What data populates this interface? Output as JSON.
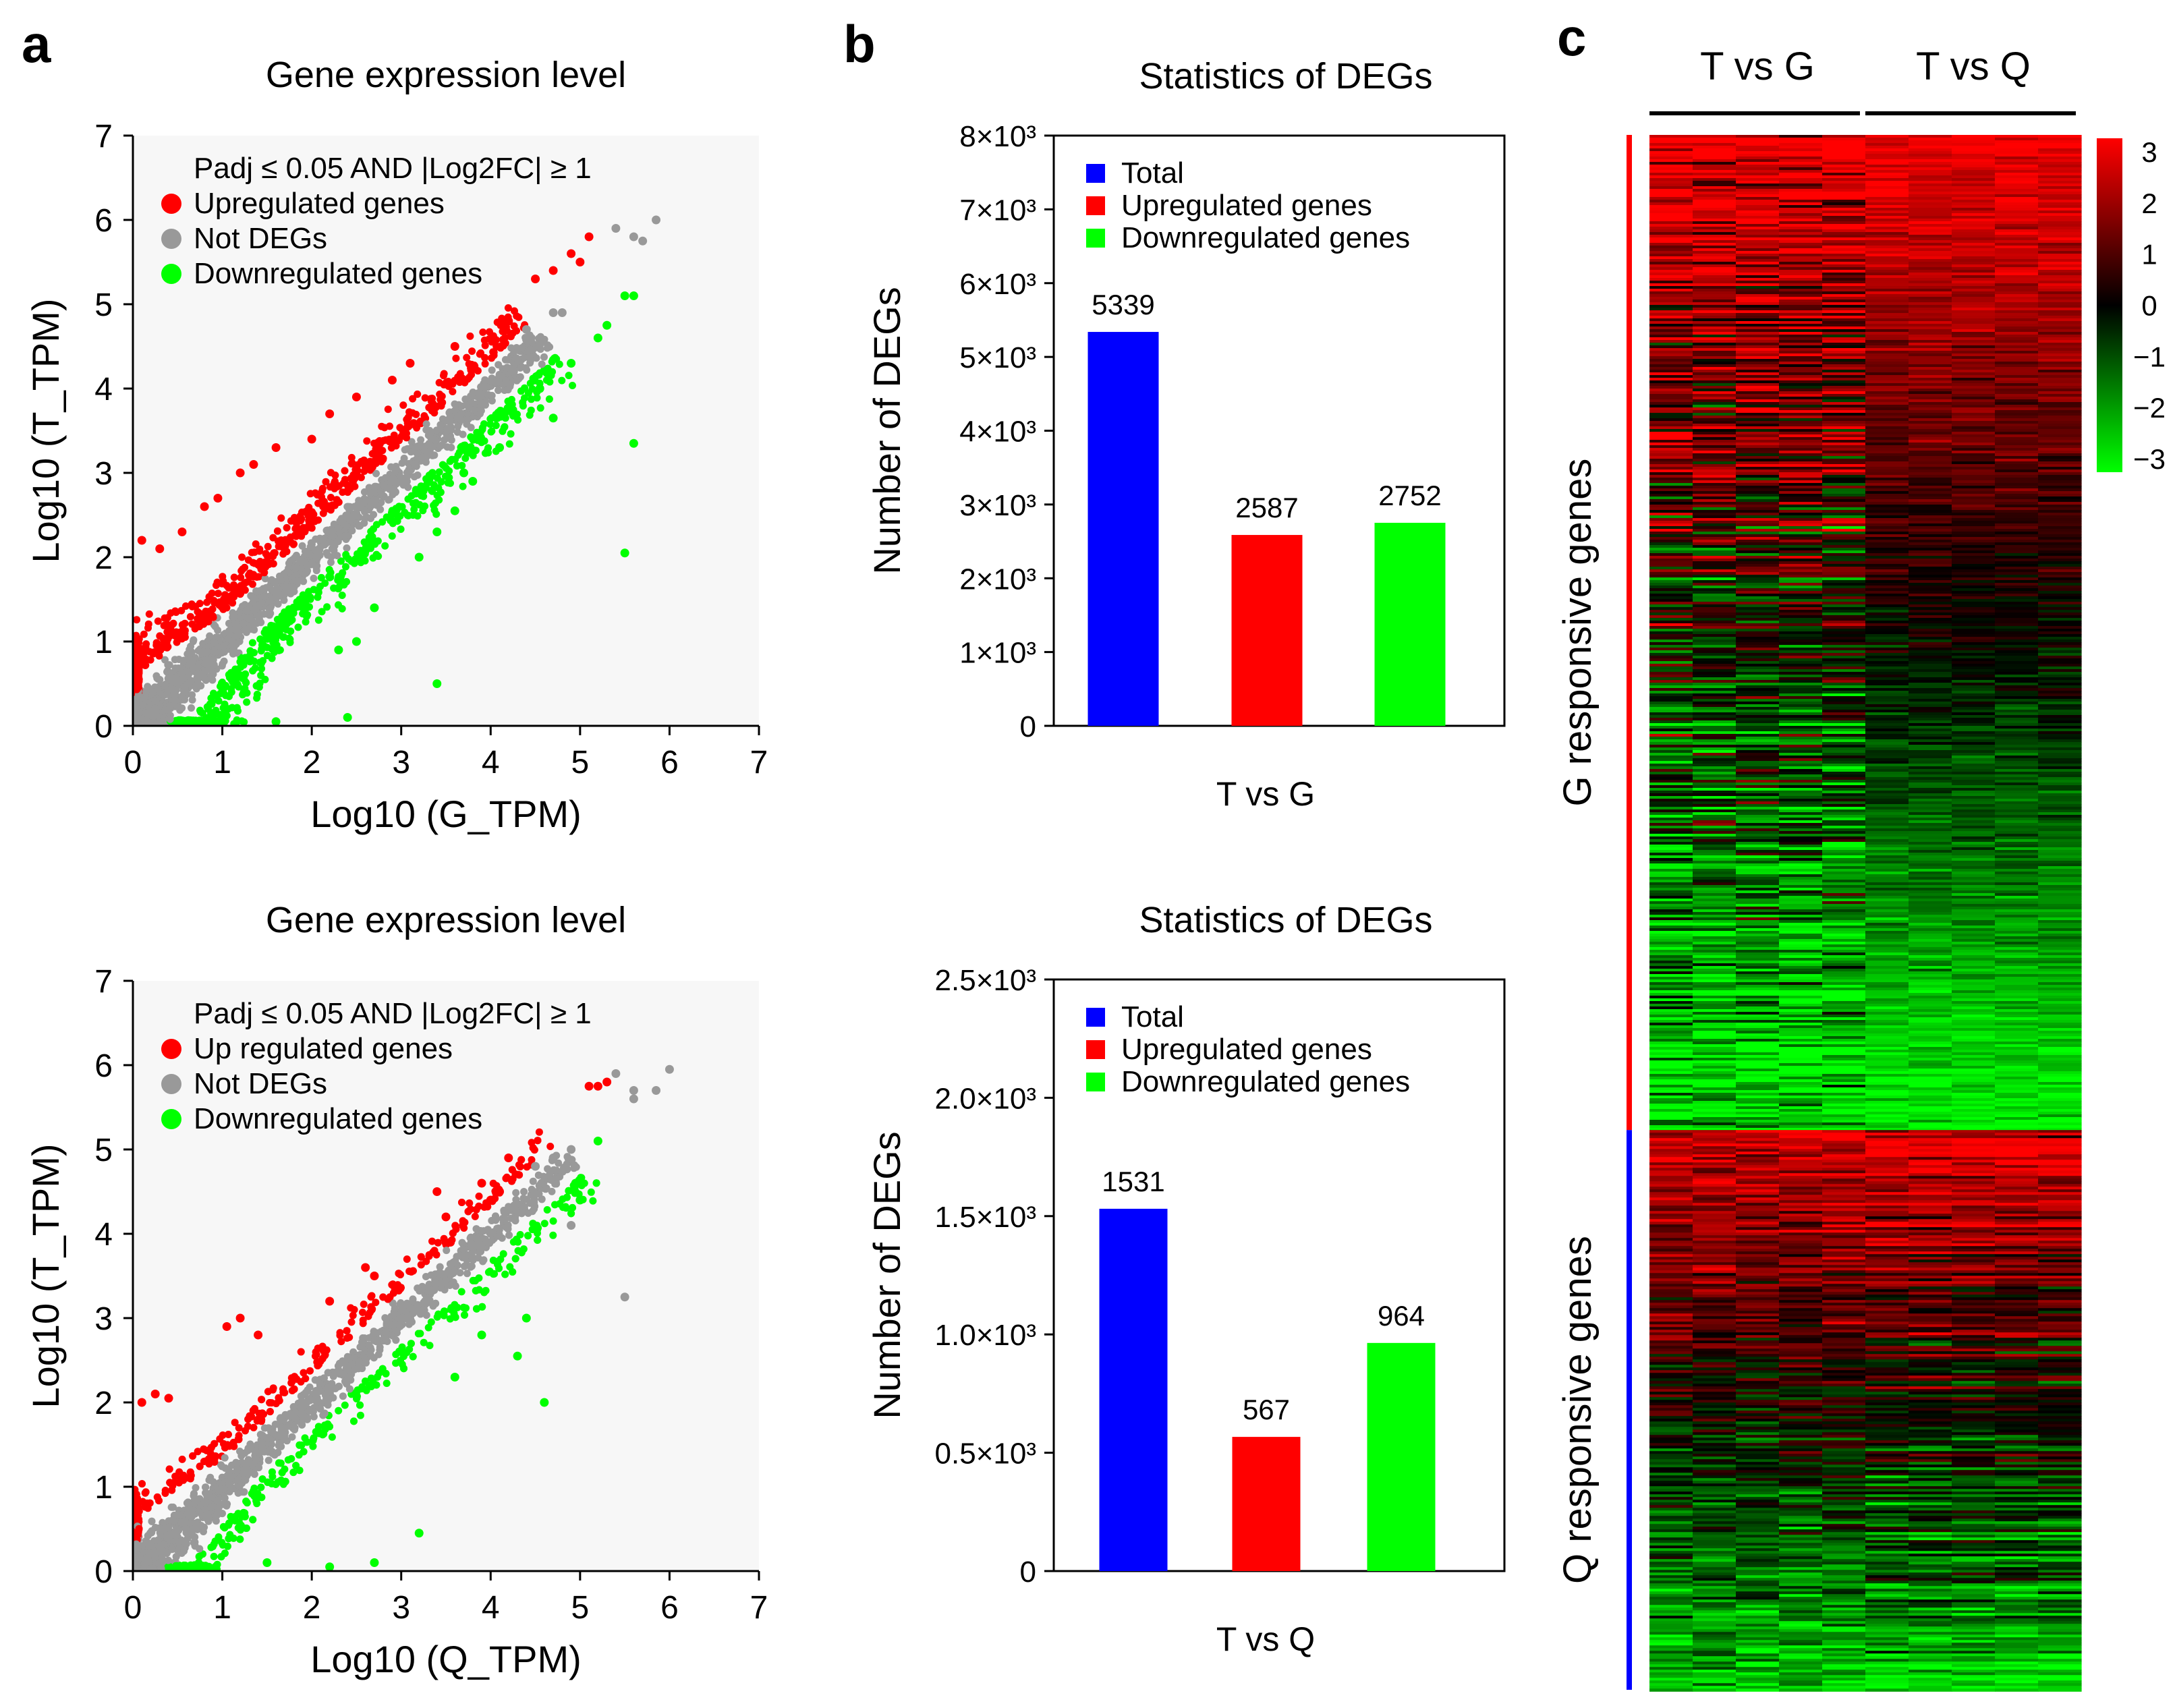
{
  "panel_labels": [
    "a",
    "b",
    "c"
  ],
  "chart_data": [
    {
      "id": "scatter_G",
      "type": "scatter",
      "title": "Gene expression level",
      "xlabel": "Log10 (G_TPM)",
      "ylabel": "Log10 (T_TPM)",
      "xlim": [
        0,
        7
      ],
      "ylim": [
        0,
        7
      ],
      "xticks": [
        "0",
        "1",
        "2",
        "3",
        "4",
        "5",
        "6",
        "7"
      ],
      "yticks": [
        "0",
        "1",
        "2",
        "3",
        "4",
        "5",
        "6",
        "7"
      ],
      "legend_title": "Padj ≤ 0.05 AND |Log2FC| ≥ 1",
      "legend_position": "top-left",
      "series": [
        {
          "name": "Upregulated genes",
          "color": "#ff0000",
          "relation": "above diagonal"
        },
        {
          "name": "Not DEGs",
          "color": "#999999",
          "relation": "near diagonal"
        },
        {
          "name": "Downregulated genes",
          "color": "#00ff00",
          "relation": "below diagonal"
        }
      ],
      "outliers": {
        "up": [
          [
            0.1,
            2.2
          ],
          [
            0.3,
            2.1
          ],
          [
            0.55,
            2.3
          ],
          [
            0.8,
            2.6
          ],
          [
            0.95,
            2.7
          ],
          [
            1.2,
            3.0
          ],
          [
            1.35,
            3.1
          ],
          [
            1.6,
            3.3
          ],
          [
            2.0,
            3.4
          ],
          [
            2.2,
            3.7
          ],
          [
            2.5,
            3.9
          ],
          [
            2.9,
            4.1
          ],
          [
            3.1,
            4.3
          ],
          [
            3.6,
            4.5
          ],
          [
            4.2,
            4.8
          ],
          [
            4.5,
            5.3
          ],
          [
            4.7,
            5.4
          ],
          [
            4.9,
            5.6
          ],
          [
            5.1,
            5.8
          ],
          [
            5.0,
            5.5
          ]
        ],
        "grey": [
          [
            5.4,
            5.9
          ],
          [
            5.6,
            5.8
          ],
          [
            5.7,
            5.75
          ],
          [
            5.85,
            6.0
          ],
          [
            4.8,
            4.9
          ],
          [
            4.4,
            4.7
          ],
          [
            4.7,
            4.9
          ]
        ],
        "down": [
          [
            5.5,
            2.05
          ],
          [
            5.6,
            3.35
          ],
          [
            5.5,
            5.1
          ],
          [
            5.6,
            5.1
          ],
          [
            5.3,
            4.75
          ],
          [
            5.2,
            4.6
          ],
          [
            4.9,
            4.3
          ],
          [
            4.55,
            4.0
          ],
          [
            4.7,
            3.65
          ],
          [
            4.1,
            3.3
          ],
          [
            3.8,
            2.9
          ],
          [
            3.6,
            2.55
          ],
          [
            3.4,
            2.3
          ],
          [
            3.2,
            2.0
          ],
          [
            3.7,
            3.0
          ],
          [
            2.7,
            1.4
          ],
          [
            2.5,
            1.0
          ],
          [
            2.3,
            0.9
          ],
          [
            3.4,
            0.5
          ],
          [
            2.4,
            0.1
          ],
          [
            1.6,
            0.05
          ]
        ]
      }
    },
    {
      "id": "scatter_Q",
      "type": "scatter",
      "title": "Gene expression level",
      "xlabel": "Log10 (Q_TPM)",
      "ylabel": "Log10 (T_TPM)",
      "xlim": [
        0,
        7
      ],
      "ylim": [
        0,
        7
      ],
      "xticks": [
        "0",
        "1",
        "2",
        "3",
        "4",
        "5",
        "6",
        "7"
      ],
      "yticks": [
        "0",
        "1",
        "2",
        "3",
        "4",
        "5",
        "6",
        "7"
      ],
      "legend_title": "Padj ≤ 0.05 AND |Log2FC| ≥ 1",
      "legend_position": "top-left",
      "series": [
        {
          "name": "Up regulated genes",
          "color": "#ff0000",
          "relation": "above diagonal"
        },
        {
          "name": "Not DEGs",
          "color": "#999999",
          "relation": "near diagonal"
        },
        {
          "name": "Downregulated genes",
          "color": "#00ff00",
          "relation": "below diagonal"
        }
      ],
      "outliers": {
        "up": [
          [
            0.1,
            2.0
          ],
          [
            0.25,
            2.1
          ],
          [
            0.4,
            2.05
          ],
          [
            1.05,
            2.9
          ],
          [
            1.2,
            3.0
          ],
          [
            1.4,
            2.8
          ],
          [
            2.2,
            3.2
          ],
          [
            2.7,
            3.5
          ],
          [
            2.6,
            3.6
          ],
          [
            3.4,
            4.5
          ],
          [
            3.5,
            4.2
          ],
          [
            3.55,
            3.9
          ],
          [
            3.9,
            4.6
          ],
          [
            4.0,
            4.4
          ],
          [
            4.1,
            4.5
          ],
          [
            4.2,
            4.9
          ],
          [
            5.1,
            5.75
          ],
          [
            5.2,
            5.75
          ],
          [
            5.3,
            5.8
          ]
        ],
        "grey": [
          [
            5.4,
            5.9
          ],
          [
            5.6,
            5.6
          ],
          [
            5.6,
            5.7
          ],
          [
            5.85,
            5.7
          ],
          [
            6.0,
            5.95
          ],
          [
            4.9,
            5.0
          ],
          [
            4.7,
            4.9
          ],
          [
            4.5,
            4.8
          ],
          [
            5.5,
            3.25
          ],
          [
            4.9,
            4.1
          ]
        ],
        "down": [
          [
            4.6,
            2.0
          ],
          [
            4.3,
            2.55
          ],
          [
            4.4,
            3.0
          ],
          [
            3.9,
            2.8
          ],
          [
            3.6,
            2.3
          ],
          [
            3.2,
            0.45
          ],
          [
            2.7,
            0.1
          ],
          [
            2.2,
            0.05
          ],
          [
            1.5,
            0.1
          ],
          [
            5.2,
            5.1
          ],
          [
            4.95,
            4.6
          ],
          [
            5.0,
            4.4
          ]
        ]
      }
    },
    {
      "id": "bar_TvsG",
      "type": "bar",
      "title": "Statistics of DEGs",
      "xlabel": "T vs G",
      "ylabel": "Number of DEGs",
      "ylim": [
        0,
        8000
      ],
      "yticks": [
        0,
        1000,
        2000,
        3000,
        4000,
        5000,
        6000,
        7000,
        8000
      ],
      "ytick_labels": [
        "0",
        "1×10³",
        "2×10³",
        "3×10³",
        "4×10³",
        "5×10³",
        "6×10³",
        "7×10³",
        "8×10³"
      ],
      "categories": [
        "Total",
        "Upregulated genes",
        "Downregulated genes"
      ],
      "values": [
        5339,
        2587,
        2752
      ],
      "colors": [
        "#0000ff",
        "#ff0000",
        "#00ff00"
      ],
      "data_labels": [
        "5339",
        "2587",
        "2752"
      ],
      "legend_position": "top-left"
    },
    {
      "id": "bar_TvsQ",
      "type": "bar",
      "title": "Statistics of DEGs",
      "xlabel": "T vs Q",
      "ylabel": "Number of DEGs",
      "ylim": [
        0,
        2500
      ],
      "yticks": [
        0,
        500,
        1000,
        1500,
        2000,
        2500
      ],
      "ytick_labels": [
        "0",
        "0.5×10³",
        "1.0×10³",
        "1.5×10³",
        "2.0×10³",
        "2.5×10³"
      ],
      "categories": [
        "Total",
        "Upregulated genes",
        "Downregulated genes"
      ],
      "values": [
        1531,
        567,
        964
      ],
      "colors": [
        "#0000ff",
        "#ff0000",
        "#00ff00"
      ],
      "data_labels": [
        "1531",
        "567",
        "964"
      ],
      "legend_position": "top-left"
    },
    {
      "id": "heatmap",
      "type": "heatmap",
      "column_groups": [
        "T vs G",
        "T vs Q"
      ],
      "columns_per_group": 5,
      "row_groups": [
        {
          "name": "G responsive genes",
          "color": "#ff0000",
          "fraction": 0.64,
          "pattern": "red at top fading to green at bottom"
        },
        {
          "name": "Q responsive genes",
          "color": "#0000ff",
          "fraction": 0.36,
          "pattern": "red at top fading to green at bottom"
        }
      ],
      "colorbar": {
        "min": -3,
        "max": 3,
        "ticks": [
          "3",
          "2",
          "1",
          "0",
          "−1",
          "−2",
          "−3"
        ],
        "low_color": "#00ff00",
        "mid_color": "#000000",
        "high_color": "#ff0000"
      }
    }
  ]
}
